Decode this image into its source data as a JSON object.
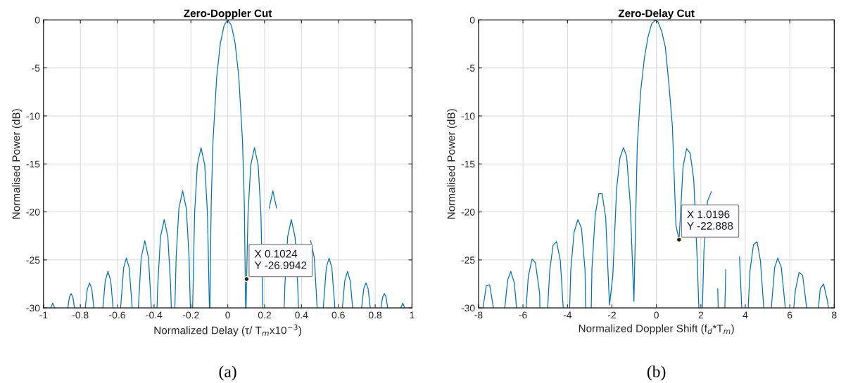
{
  "chart_data": [
    {
      "type": "line",
      "title": "Zero-Doppler Cut",
      "xlabel": "Normalized Delay (τ/ T$_{m}$x10$^{−3}$)",
      "ylabel": "Normalised Power (dB)",
      "xlim": [
        -1,
        1
      ],
      "xticks": [
        -1,
        -0.8,
        -0.6,
        -0.4,
        -0.2,
        0,
        0.2,
        0.4,
        0.6,
        0.8,
        1
      ],
      "ylim": [
        -30,
        0
      ],
      "yticks": [
        -30,
        -25,
        -20,
        -15,
        -10,
        -5,
        0
      ],
      "grid": true,
      "marker": "none",
      "line_style": "solid",
      "annotations": [
        {
          "text": "X 0.1024\nY -26.9942",
          "x": 0.1024,
          "y": -26.9942
        },
        "(a)"
      ],
      "series": [
        {
          "color": "#0072bd",
          "x": [
            -0.9607,
            -0.95,
            -0.9393,
            null,
            -0.8682,
            -0.859,
            -0.85,
            -0.841,
            -0.8318,
            null,
            -0.7734,
            -0.762,
            -0.75,
            -0.738,
            -0.7266,
            null,
            -0.6777,
            -0.665,
            -0.65,
            -0.635,
            -0.6223,
            null,
            -0.5815,
            -0.565,
            -0.55,
            -0.535,
            -0.5185,
            null,
            -0.4852,
            -0.47,
            -0.45,
            -0.43,
            -0.4148,
            null,
            -0.3837,
            -0.38,
            -0.365,
            -0.345,
            -0.325,
            -0.31,
            -0.3063,
            null,
            -0.287,
            -0.28,
            -0.265,
            -0.245,
            -0.225,
            -0.21,
            -0.203,
            null,
            -0.1905,
            -0.18,
            -0.165,
            -0.145,
            -0.125,
            -0.11,
            -0.0995,
            null,
            -0.0968,
            -0.09,
            -0.08,
            -0.06,
            -0.04,
            -0.02,
            0,
            0.02,
            0.04,
            0.06,
            0.08,
            0.09,
            0.0968,
            null,
            0.0995,
            0.1024,
            0.11,
            0.125,
            0.145,
            0.165,
            0.18,
            0.1905,
            null,
            0.225,
            0.245,
            0.265,
            null,
            0.3063,
            0.31,
            0.325,
            0.345,
            0.365,
            0.38,
            0.3837,
            null,
            0.45,
            0.47,
            0.4852,
            null,
            0.5185,
            0.535,
            0.55,
            0.565,
            0.5815,
            null,
            0.6223,
            0.635,
            0.65,
            0.665,
            0.6777,
            null,
            0.7266,
            0.738,
            0.75,
            0.762,
            0.7734,
            null,
            0.8318,
            0.841,
            0.85,
            0.859,
            0.8682,
            null,
            0.9393,
            0.95,
            0.9607
          ],
          "values": [
            -30,
            -29.5,
            -30,
            null,
            -30,
            -28.85,
            -28.5,
            -28.85,
            -30,
            null,
            -30,
            -28.0,
            -27.4,
            -28.0,
            -30,
            null,
            -30,
            -27.2,
            -26.2,
            -27.2,
            -30,
            null,
            -30,
            -25.8,
            -24.8,
            -25.8,
            -30,
            null,
            -30,
            -24.8,
            -23.0,
            -24.8,
            -30,
            null,
            -30,
            -27.7,
            -22.6,
            -20.8,
            -22.6,
            -27.7,
            -30,
            null,
            -30,
            -24.7,
            -19.6,
            -17.8,
            -19.6,
            -24.7,
            -30,
            null,
            -30,
            -20.2,
            -15.1,
            -13.3,
            -15.1,
            -20.2,
            -30,
            null,
            -30,
            -19.2,
            -12.6,
            -5.94,
            -2.42,
            -0.58,
            0,
            -0.58,
            -2.42,
            -5.94,
            -12.6,
            -19.2,
            -30,
            null,
            -30,
            -27.0,
            -20.2,
            -15.1,
            -13.3,
            -15.1,
            -20.2,
            -30,
            null,
            -19.6,
            -17.8,
            -19.6,
            null,
            -30,
            -27.7,
            -22.6,
            -20.8,
            -22.6,
            -27.7,
            -30,
            null,
            -23.0,
            -24.8,
            -30,
            null,
            -30,
            -25.8,
            -24.8,
            -25.8,
            -30,
            null,
            -30,
            -27.2,
            -26.2,
            -27.2,
            -30,
            null,
            -30,
            -28.0,
            -27.4,
            -28.0,
            -30,
            null,
            -30,
            -28.85,
            -28.5,
            -28.85,
            -30,
            null,
            -30,
            -29.5,
            -30
          ]
        }
      ]
    },
    {
      "type": "line",
      "title": "Zero-Delay Cut",
      "xlabel": "Normalized Doppler Shift (f$_{d}$*T$_{m}$)",
      "ylabel": "Normalised Power (dB)",
      "xlim": [
        -8,
        8
      ],
      "xticks": [
        -8,
        -6,
        -4,
        -2,
        0,
        2,
        4,
        6,
        8
      ],
      "ylim": [
        -30,
        0
      ],
      "yticks": [
        -30,
        -25,
        -20,
        -15,
        -10,
        -5,
        0
      ],
      "grid": true,
      "marker": "none",
      "line_style": "solid",
      "annotations": [
        {
          "text": "X 1.0196\nY -22.888",
          "x": 1.0196,
          "y": -22.888
        },
        "(b)"
      ],
      "series": [
        {
          "color": "#0072bd",
          "x": [
            -7.8,
            -7.65,
            -7.5,
            -7.33,
            null,
            -6.82,
            -6.69,
            -6.55,
            -6.39,
            -6.29,
            null,
            -5.86,
            -5.76,
            -5.59,
            -5.44,
            -5.25,
            -5.24,
            null,
            -4.89,
            -4.8,
            -4.65,
            -4.49,
            -4.32,
            -4.19,
            null,
            -3.9,
            -3.85,
            -3.7,
            -3.53,
            -3.37,
            -3.21,
            -3.18,
            null,
            -2.93,
            -2.9,
            -2.75,
            -2.59,
            -2.44,
            -2.28,
            -2.11,
            -1.96,
            -1.79,
            -1.64,
            -1.48,
            -1.34,
            -1.18,
            -1.01,
            -0.86,
            -0.71,
            -0.54,
            -0.38,
            -0.21,
            -0.05,
            0.07,
            0.24,
            0.4,
            0.56,
            0.72,
            0.88,
            1.0196,
            1.2,
            1.36,
            1.52,
            1.68,
            1.84,
            1.91,
            null,
            2.07,
            2.14,
            2.3,
            2.47,
            null,
            2.76,
            2.78,
            null,
            3.08,
            3.12,
            null,
            3.74,
            3.84,
            null,
            4.13,
            4.21,
            4.37,
            4.53,
            4.68,
            4.83,
            null,
            5.17,
            5.32,
            5.46,
            5.62,
            5.8,
            null,
            6.18,
            6.25,
            6.42,
            6.58,
            6.76,
            null,
            7.29,
            7.37,
            7.52,
            7.69,
            7.74
          ],
          "values": [
            -30,
            -27.7,
            -27.6,
            -30,
            null,
            -30,
            -27.1,
            -26.2,
            -27.4,
            -30,
            null,
            -30,
            -26.7,
            -24.9,
            -25.3,
            -28.5,
            -30,
            null,
            -30,
            -26.2,
            -23.5,
            -23.1,
            -25.1,
            -30,
            null,
            -30,
            -26.0,
            -22.1,
            -20.8,
            -21.7,
            -26.0,
            -30,
            null,
            -30,
            -26.0,
            -20.3,
            -18.1,
            -18.1,
            -20.6,
            -29.7,
            -26.7,
            -17.6,
            -14.4,
            -13.3,
            -14.2,
            -19.0,
            -29.3,
            -13.1,
            -7.5,
            -4.0,
            -1.8,
            -0.4,
            0,
            -0.2,
            -1.2,
            -2.8,
            -6.6,
            -11.1,
            -21.4,
            -22.9,
            -15.3,
            -13.4,
            -13.9,
            -16.6,
            -25.2,
            -30,
            null,
            -30,
            -24.0,
            -18.9,
            -17.9,
            null,
            -28.0,
            -30,
            null,
            -30,
            -26.0,
            null,
            -24.7,
            -30,
            null,
            -30,
            -26.1,
            -23.4,
            -23.1,
            -25.1,
            -30,
            null,
            -30,
            -25.8,
            -24.8,
            -25.8,
            -30,
            null,
            -30,
            -28.2,
            -26.3,
            -26.6,
            -30,
            null,
            -30,
            -28.0,
            -27.5,
            -29.2,
            -30
          ]
        }
      ]
    }
  ]
}
